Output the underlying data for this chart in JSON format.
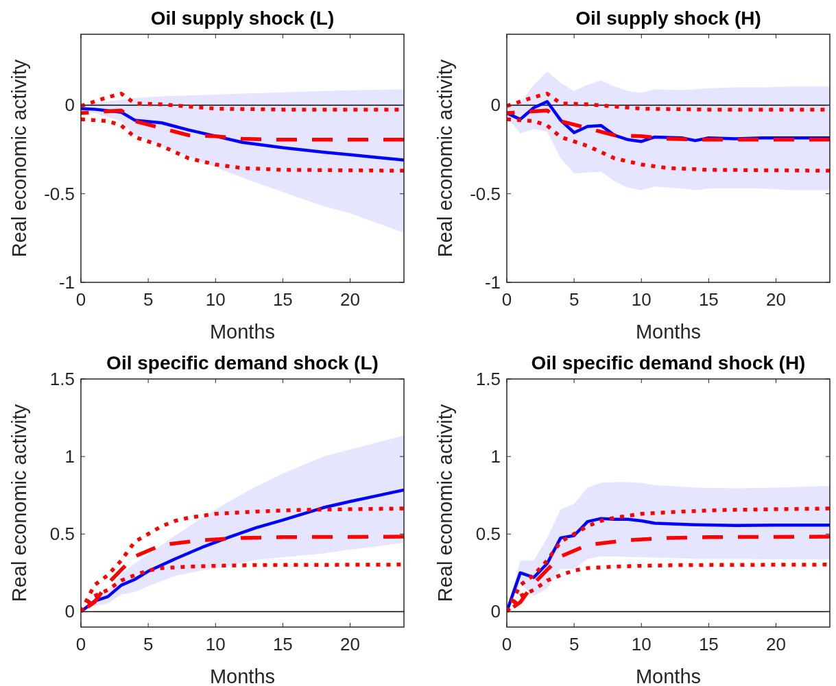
{
  "chart_data": [
    {
      "type": "line",
      "title": "Oil supply shock (L)",
      "xlabel": "Months",
      "ylabel": "Real economic activity",
      "xlim": [
        0,
        24
      ],
      "xticks": [
        0,
        5,
        10,
        15,
        20
      ],
      "ylim": [
        -1,
        0.4
      ],
      "yticks": [
        -1,
        -0.5,
        0
      ],
      "ref_lines": [
        {
          "axis": "y",
          "value": 0,
          "color": "#000000"
        }
      ],
      "series": [
        {
          "color": "#0000ff",
          "line_style": "solid",
          "x": [
            0,
            1,
            3,
            4,
            6,
            8,
            10,
            12,
            15,
            18,
            20,
            22,
            24
          ],
          "values": [
            -0.02,
            -0.023,
            -0.04,
            -0.085,
            -0.1,
            -0.14,
            -0.175,
            -0.21,
            -0.24,
            -0.265,
            -0.28,
            -0.295,
            -0.31
          ],
          "upper": [
            0,
            0.012,
            0.032,
            0.04,
            0.05,
            0.055,
            0.06,
            0.065,
            0.072,
            0.08,
            0.084,
            0.087,
            0.09
          ],
          "lower": [
            -0.04,
            -0.045,
            -0.09,
            -0.17,
            -0.23,
            -0.29,
            -0.35,
            -0.41,
            -0.49,
            -0.57,
            -0.61,
            -0.665,
            -0.72
          ]
        },
        {
          "color": "#ff0000",
          "line_style": "dashed",
          "x": [
            0,
            1,
            3,
            4,
            6,
            8,
            10,
            12,
            15,
            24
          ],
          "values": [
            -0.045,
            -0.04,
            -0.03,
            -0.09,
            -0.13,
            -0.17,
            -0.175,
            -0.19,
            -0.195,
            -0.195
          ]
        },
        {
          "color": "#ff0000",
          "line_style": "dotted",
          "x": [
            0,
            2,
            3,
            4,
            6,
            10,
            15,
            24
          ],
          "values": [
            -0.005,
            0.045,
            0.065,
            0.01,
            0.005,
            -0.02,
            -0.025,
            -0.025
          ]
        },
        {
          "color": "#ff0000",
          "line_style": "dotted",
          "x": [
            0,
            2,
            3,
            4,
            6,
            8,
            10,
            12,
            15,
            24
          ],
          "values": [
            -0.08,
            -0.09,
            -0.115,
            -0.18,
            -0.23,
            -0.3,
            -0.335,
            -0.355,
            -0.365,
            -0.37
          ]
        }
      ]
    },
    {
      "type": "line",
      "title": "Oil supply shock (H)",
      "xlabel": "Months",
      "ylabel": "Real economic activity",
      "xlim": [
        0,
        24
      ],
      "xticks": [
        0,
        5,
        10,
        15,
        20
      ],
      "ylim": [
        -1,
        0.4
      ],
      "yticks": [
        -1,
        -0.5,
        0
      ],
      "ref_lines": [
        {
          "axis": "y",
          "value": 0,
          "color": "#000000"
        }
      ],
      "series": [
        {
          "color": "#0000ff",
          "line_style": "solid",
          "x": [
            0,
            1,
            2,
            3,
            4,
            5,
            6,
            7,
            8,
            9,
            10,
            11,
            13,
            14,
            15,
            17,
            19,
            21,
            24
          ],
          "values": [
            -0.045,
            -0.08,
            -0.015,
            0.02,
            -0.085,
            -0.155,
            -0.12,
            -0.115,
            -0.17,
            -0.195,
            -0.205,
            -0.18,
            -0.185,
            -0.2,
            -0.185,
            -0.19,
            -0.185,
            -0.185,
            -0.185
          ],
          "upper": [
            0,
            0.01,
            0.115,
            0.19,
            0.125,
            0.08,
            0.115,
            0.14,
            0.105,
            0.08,
            0.07,
            0.09,
            0.085,
            0.09,
            0.095,
            0.1,
            0.1,
            0.105,
            0.105
          ],
          "lower": [
            -0.065,
            -0.16,
            -0.135,
            -0.15,
            -0.3,
            -0.385,
            -0.38,
            -0.375,
            -0.43,
            -0.465,
            -0.48,
            -0.46,
            -0.47,
            -0.48,
            -0.47,
            -0.47,
            -0.47,
            -0.48,
            -0.48
          ]
        },
        {
          "color": "#ff0000",
          "line_style": "dashed",
          "x": [
            0,
            1,
            3,
            4,
            6,
            8,
            10,
            12,
            15,
            24
          ],
          "values": [
            -0.045,
            -0.04,
            -0.03,
            -0.09,
            -0.13,
            -0.17,
            -0.175,
            -0.19,
            -0.195,
            -0.195
          ]
        },
        {
          "color": "#ff0000",
          "line_style": "dotted",
          "x": [
            0,
            2,
            3,
            4,
            6,
            10,
            15,
            24
          ],
          "values": [
            -0.005,
            0.045,
            0.065,
            0.01,
            0.005,
            -0.02,
            -0.025,
            -0.025
          ]
        },
        {
          "color": "#ff0000",
          "line_style": "dotted",
          "x": [
            0,
            2,
            3,
            4,
            6,
            8,
            10,
            12,
            15,
            24
          ],
          "values": [
            -0.08,
            -0.09,
            -0.115,
            -0.18,
            -0.23,
            -0.3,
            -0.335,
            -0.355,
            -0.365,
            -0.37
          ]
        }
      ]
    },
    {
      "type": "line",
      "title": "Oil specific demand shock (L)",
      "xlabel": "Months",
      "ylabel": "Real economic activity",
      "xlim": [
        0,
        24
      ],
      "xticks": [
        0,
        5,
        10,
        15,
        20
      ],
      "ylim": [
        -0.1,
        1.5
      ],
      "yticks": [
        0,
        0.5,
        1,
        1.5
      ],
      "ref_lines": [
        {
          "axis": "y",
          "value": 0,
          "color": "#000000"
        }
      ],
      "series": [
        {
          "color": "#0000ff",
          "line_style": "solid",
          "x": [
            0,
            1,
            2,
            3,
            4,
            5,
            7,
            9,
            11,
            13,
            15,
            18,
            20,
            22,
            24
          ],
          "values": [
            0,
            0.067,
            0.096,
            0.17,
            0.207,
            0.26,
            0.34,
            0.414,
            0.48,
            0.54,
            0.59,
            0.67,
            0.71,
            0.747,
            0.784
          ],
          "upper": [
            0,
            0.08,
            0.13,
            0.245,
            0.31,
            0.37,
            0.49,
            0.605,
            0.71,
            0.805,
            0.89,
            1.0,
            1.045,
            1.09,
            1.135
          ],
          "lower": [
            0,
            0.037,
            0.05,
            0.11,
            0.125,
            0.163,
            0.23,
            0.265,
            0.296,
            0.333,
            0.35,
            0.375,
            0.4,
            0.42,
            0.444
          ]
        },
        {
          "color": "#ff0000",
          "line_style": "dashed",
          "x": [
            0,
            1,
            2,
            3,
            4,
            6,
            9,
            12,
            15,
            24
          ],
          "values": [
            0,
            0.06,
            0.18,
            0.27,
            0.355,
            0.43,
            0.46,
            0.475,
            0.48,
            0.483
          ]
        },
        {
          "color": "#ff0000",
          "line_style": "dotted",
          "x": [
            0,
            1,
            2,
            3,
            4,
            5,
            6,
            7,
            8,
            10,
            13,
            16,
            24
          ],
          "values": [
            0,
            0.17,
            0.235,
            0.33,
            0.45,
            0.5,
            0.55,
            0.585,
            0.605,
            0.63,
            0.645,
            0.655,
            0.665
          ]
        },
        {
          "color": "#ff0000",
          "line_style": "dotted",
          "x": [
            0,
            1,
            2,
            3,
            4,
            5,
            6,
            8,
            10,
            13,
            24
          ],
          "values": [
            0,
            0.1,
            0.14,
            0.2,
            0.235,
            0.265,
            0.28,
            0.29,
            0.295,
            0.3,
            0.303
          ]
        }
      ]
    },
    {
      "type": "line",
      "title": "Oil specific demand shock (H)",
      "xlabel": "Months",
      "ylabel": "Real economic activity",
      "xlim": [
        0,
        24
      ],
      "xticks": [
        0,
        5,
        10,
        15,
        20
      ],
      "ylim": [
        -0.1,
        1.5
      ],
      "yticks": [
        0,
        0.5,
        1,
        1.5
      ],
      "ref_lines": [
        {
          "axis": "y",
          "value": 0,
          "color": "#000000"
        }
      ],
      "series": [
        {
          "color": "#0000ff",
          "line_style": "solid",
          "x": [
            0,
            1,
            2,
            3,
            4,
            5,
            6,
            7,
            8,
            9,
            10,
            11,
            12,
            14,
            17,
            20,
            24
          ],
          "values": [
            0,
            0.25,
            0.22,
            0.31,
            0.475,
            0.49,
            0.58,
            0.6,
            0.595,
            0.595,
            0.585,
            0.57,
            0.566,
            0.56,
            0.555,
            0.557,
            0.557
          ],
          "upper": [
            0,
            0.33,
            0.33,
            0.475,
            0.66,
            0.695,
            0.8,
            0.83,
            0.835,
            0.835,
            0.83,
            0.815,
            0.81,
            0.8,
            0.795,
            0.8,
            0.81
          ],
          "lower": [
            0,
            0.18,
            0.1,
            0.15,
            0.275,
            0.275,
            0.34,
            0.355,
            0.355,
            0.352,
            0.35,
            0.348,
            0.345,
            0.34,
            0.34,
            0.338,
            0.337
          ]
        },
        {
          "color": "#ff0000",
          "line_style": "dashed",
          "x": [
            0,
            1,
            2,
            3,
            4,
            6,
            9,
            12,
            15,
            24
          ],
          "values": [
            0,
            0.06,
            0.18,
            0.27,
            0.355,
            0.43,
            0.46,
            0.475,
            0.48,
            0.483
          ]
        },
        {
          "color": "#ff0000",
          "line_style": "dotted",
          "x": [
            0,
            1,
            2,
            3,
            4,
            5,
            6,
            7,
            8,
            10,
            13,
            16,
            24
          ],
          "values": [
            0,
            0.17,
            0.235,
            0.33,
            0.45,
            0.5,
            0.55,
            0.585,
            0.605,
            0.63,
            0.645,
            0.655,
            0.665
          ]
        },
        {
          "color": "#ff0000",
          "line_style": "dotted",
          "x": [
            0,
            1,
            2,
            3,
            4,
            5,
            6,
            8,
            10,
            13,
            24
          ],
          "values": [
            0,
            0.1,
            0.14,
            0.2,
            0.235,
            0.265,
            0.28,
            0.29,
            0.295,
            0.3,
            0.303
          ]
        }
      ]
    }
  ]
}
